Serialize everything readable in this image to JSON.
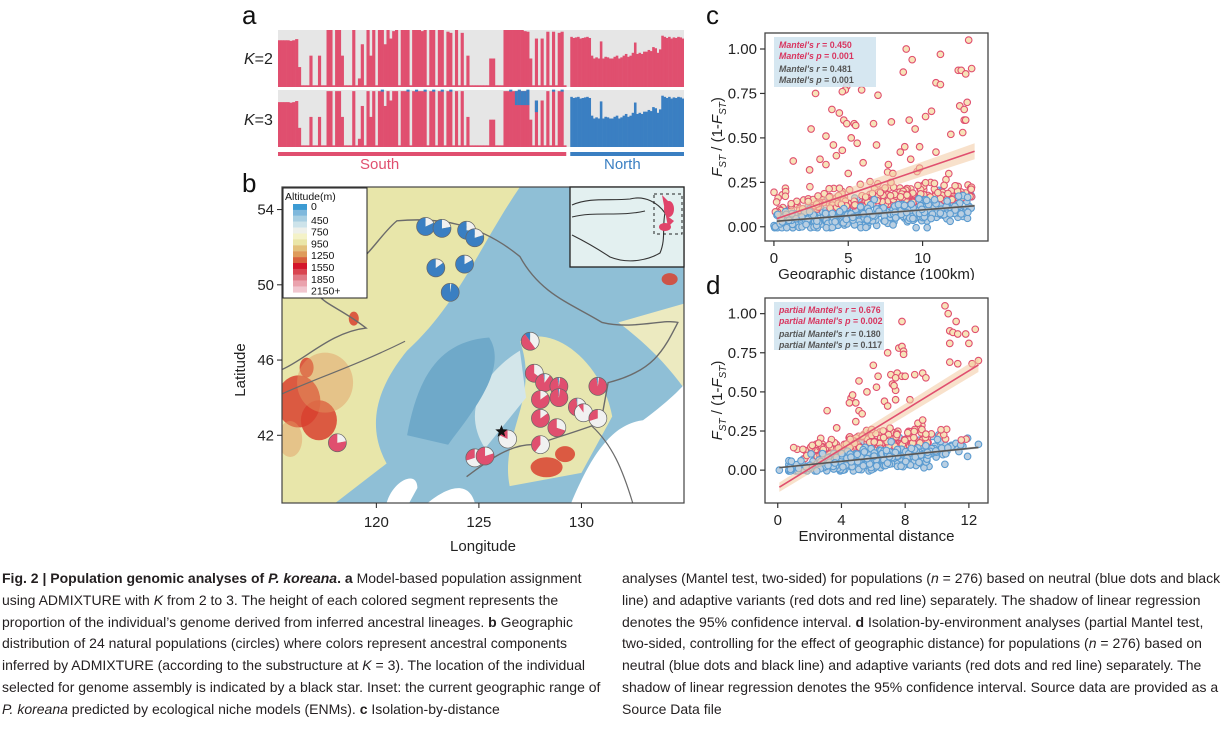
{
  "panels": {
    "a": {
      "letter": "a",
      "rows": [
        {
          "label_var": "K",
          "label_rest": "=2"
        },
        {
          "label_var": "K",
          "label_rest": "=3"
        }
      ],
      "groups": [
        {
          "name": "South",
          "color": "#e04f6f",
          "share": 0.71
        },
        {
          "name": "North",
          "color": "#3a7fc2",
          "share": 0.29
        }
      ],
      "colors": {
        "cluster1": "#e04f6f",
        "cluster2": "#e6e6e6",
        "cluster3": "#3a7fc2"
      },
      "k2_south_profile": [
        0.82,
        0.82,
        0.82,
        0.82,
        0.81,
        0.82,
        0.84,
        0.35,
        0.03,
        0.03,
        0.03,
        0.55,
        0.03,
        0.03,
        0.55,
        0.03,
        0.03,
        1.0,
        1.0,
        0.03,
        1.0,
        1.0,
        0.55,
        0.03,
        0.03,
        0.03,
        1.0,
        0.03,
        0.15,
        0.75,
        0.03,
        1.0,
        0.55,
        1.0,
        0.03,
        1.0,
        1.0,
        0.75,
        1.0,
        0.85,
        0.98,
        1.0,
        0.03,
        1.0,
        1.0,
        1.0,
        0.03,
        1.0,
        1.0,
        1.0,
        0.98,
        1.0,
        0.03,
        1.0,
        1.0,
        0.03,
        1.0,
        1.0,
        0.03,
        0.97,
        0.95,
        0.03,
        1.0,
        0.03,
        0.95,
        0.03,
        0.55,
        0.03,
        0.03,
        0.03,
        0.03,
        0.03,
        0.03,
        0.03,
        0.5,
        0.5,
        0.03,
        0.03,
        0.03,
        1.0,
        1.0,
        1.0,
        1.0,
        1.0,
        1.0,
        1.0,
        0.98,
        0.97,
        0.5,
        0.03,
        0.85,
        0.03,
        0.85,
        0.03,
        0.97,
        0.03,
        0.97,
        0.03,
        0.95,
        0.97,
        0.03
      ],
      "k2_north_profile": [
        0.88,
        0.86,
        0.87,
        0.88,
        0.85,
        0.86,
        0.87,
        0.88,
        0.86,
        0.55,
        0.5,
        0.52,
        0.5,
        0.8,
        0.5,
        0.53,
        0.52,
        0.5,
        0.5,
        0.53,
        0.55,
        0.5,
        0.52,
        0.55,
        0.58,
        0.53,
        0.55,
        0.6,
        0.78,
        0.58,
        0.6,
        0.58,
        0.62,
        0.62,
        0.65,
        0.63,
        0.7,
        0.68,
        0.6,
        0.66,
        0.9,
        0.88,
        0.86,
        0.88,
        0.85,
        0.87,
        0.86,
        0.88,
        0.87,
        0.85
      ]
    },
    "b": {
      "letter": "b",
      "legend_title": "Altitude(m)",
      "legend_items": [
        {
          "label": "0",
          "color": "#3c9bd3"
        },
        {
          "label": "",
          "color": "#7fb8dc"
        },
        {
          "label": "450",
          "color": "#a9cfe2"
        },
        {
          "label": "",
          "color": "#cde3ea"
        },
        {
          "label": "750",
          "color": "#eef0ea"
        },
        {
          "label": "",
          "color": "#f4f2c8"
        },
        {
          "label": "950",
          "color": "#eae6a8"
        },
        {
          "label": "",
          "color": "#e3c17c"
        },
        {
          "label": "1250",
          "color": "#de9b5a"
        },
        {
          "label": "",
          "color": "#d8603c"
        },
        {
          "label": "1550",
          "color": "#d4152a"
        },
        {
          "label": "",
          "color": "#d94450"
        },
        {
          "label": "1850",
          "color": "#e07a86"
        },
        {
          "label": "",
          "color": "#eaa2ad"
        },
        {
          "label": "2150+",
          "color": "#f1c6cf"
        }
      ],
      "x_axis_label": "Longitude",
      "y_axis_label": "Latitude",
      "x_ticks": [
        "120",
        "125",
        "130"
      ],
      "y_ticks": [
        "54",
        "50",
        "46",
        "42"
      ],
      "lon_range": [
        115.4,
        135
      ],
      "lat_range": [
        38.4,
        55.2
      ],
      "populations": [
        {
          "lon": 122.4,
          "lat": 53.1,
          "north": 0.82,
          "south": 0.0,
          "other": 0.18
        },
        {
          "lon": 123.2,
          "lat": 53.0,
          "north": 0.78,
          "south": 0.0,
          "other": 0.22
        },
        {
          "lon": 124.4,
          "lat": 52.9,
          "north": 0.75,
          "south": 0.0,
          "other": 0.25
        },
        {
          "lon": 124.8,
          "lat": 52.5,
          "north": 0.8,
          "south": 0.0,
          "other": 0.2
        },
        {
          "lon": 122.9,
          "lat": 50.9,
          "north": 0.85,
          "south": 0.0,
          "other": 0.15
        },
        {
          "lon": 124.3,
          "lat": 51.1,
          "north": 0.83,
          "south": 0.0,
          "other": 0.17
        },
        {
          "lon": 123.6,
          "lat": 49.6,
          "north": 0.98,
          "south": 0.0,
          "other": 0.02
        },
        {
          "lon": 127.5,
          "lat": 47.0,
          "north": 0.1,
          "south": 0.5,
          "other": 0.4
        },
        {
          "lon": 127.7,
          "lat": 45.3,
          "north": 0.0,
          "south": 0.65,
          "other": 0.35
        },
        {
          "lon": 128.2,
          "lat": 44.8,
          "north": 0.02,
          "south": 0.88,
          "other": 0.1
        },
        {
          "lon": 128.9,
          "lat": 44.6,
          "north": 0.03,
          "south": 0.95,
          "other": 0.02
        },
        {
          "lon": 130.8,
          "lat": 44.6,
          "north": 0.03,
          "south": 0.95,
          "other": 0.02
        },
        {
          "lon": 128.0,
          "lat": 43.9,
          "north": 0.0,
          "south": 0.85,
          "other": 0.15
        },
        {
          "lon": 128.9,
          "lat": 44.0,
          "north": 0.02,
          "south": 0.96,
          "other": 0.02
        },
        {
          "lon": 129.8,
          "lat": 43.5,
          "north": 0.02,
          "south": 0.55,
          "other": 0.43
        },
        {
          "lon": 130.1,
          "lat": 43.2,
          "north": 0.0,
          "south": 0.1,
          "other": 0.9
        },
        {
          "lon": 128.0,
          "lat": 42.9,
          "north": 0.0,
          "south": 0.85,
          "other": 0.15
        },
        {
          "lon": 128.8,
          "lat": 42.4,
          "north": 0.0,
          "south": 0.7,
          "other": 0.3
        },
        {
          "lon": 130.8,
          "lat": 42.9,
          "north": 0.0,
          "south": 0.3,
          "other": 0.7
        },
        {
          "lon": 118.1,
          "lat": 41.6,
          "north": 0.0,
          "south": 0.78,
          "other": 0.22
        },
        {
          "lon": 126.4,
          "lat": 41.8,
          "north": 0.0,
          "south": 0.18,
          "other": 0.82
        },
        {
          "lon": 128.0,
          "lat": 41.5,
          "north": 0.0,
          "south": 0.4,
          "other": 0.6
        },
        {
          "lon": 124.8,
          "lat": 40.8,
          "north": 0.0,
          "south": 0.3,
          "other": 0.7
        },
        {
          "lon": 125.3,
          "lat": 40.9,
          "north": 0.0,
          "south": 0.8,
          "other": 0.2
        }
      ],
      "star": {
        "lon": 126.1,
        "lat": 42.2
      }
    }
  },
  "chart_data": [
    {
      "panel": "c",
      "type": "scatter",
      "xlabel": "Geographic distance (100km)",
      "ylabel_main": "F",
      "ylabel_sub": "ST",
      "ylabel_mid": " / (1-",
      "ylabel_end": ")",
      "x_ticks": [
        0,
        5,
        10
      ],
      "y_ticks": [
        "0.00",
        "0.25",
        "0.50",
        "0.75",
        "1.00"
      ],
      "xlim": [
        -0.6,
        14.4
      ],
      "ylim": [
        -0.08,
        1.09
      ],
      "annotation": [
        {
          "pre": "Mantel's ",
          "var": "r",
          "post": " = 0.450",
          "series": "adaptive"
        },
        {
          "pre": "Mantel's ",
          "var": "p",
          "post": " = 0.001",
          "series": "adaptive"
        },
        {
          "pre": "Mantel's ",
          "var": "r",
          "post": " = 0.481",
          "series": "neutral"
        },
        {
          "pre": "Mantel's ",
          "var": "p",
          "post": " = 0.001",
          "series": "neutral"
        }
      ],
      "series": [
        {
          "name": "adaptive variants",
          "color": "#e04f6f",
          "fill": "#f7e3b8",
          "fit": {
            "intercept": 0.04,
            "slope": 0.0285
          },
          "n_points": 276
        },
        {
          "name": "neutral variants",
          "color": "#5b9bd0",
          "fill": "#b9cfe2",
          "line_color": "#555555",
          "fit": {
            "intercept": 0.03,
            "slope": 0.0065
          },
          "n_points": 276
        }
      ],
      "adaptive_upper_points": [
        [
          8.9,
          1.0
        ],
        [
          13.1,
          1.05
        ],
        [
          9.3,
          0.94
        ],
        [
          11.2,
          0.97
        ],
        [
          12.4,
          0.88
        ],
        [
          12.6,
          0.88
        ],
        [
          13.3,
          0.89
        ],
        [
          12.9,
          0.86
        ],
        [
          8.7,
          0.87
        ],
        [
          4.9,
          0.79
        ],
        [
          4.8,
          0.77
        ],
        [
          4.6,
          0.76
        ],
        [
          2.8,
          0.75
        ],
        [
          5.9,
          0.77
        ],
        [
          7.0,
          0.74
        ],
        [
          10.9,
          0.81
        ],
        [
          11.2,
          0.8
        ],
        [
          10.6,
          0.65
        ],
        [
          13.0,
          0.7
        ],
        [
          12.5,
          0.68
        ],
        [
          12.8,
          0.66
        ],
        [
          12.8,
          0.6
        ],
        [
          12.9,
          0.6
        ],
        [
          4.4,
          0.64
        ],
        [
          3.9,
          0.66
        ],
        [
          4.7,
          0.6
        ],
        [
          4.9,
          0.58
        ],
        [
          5.4,
          0.58
        ],
        [
          5.5,
          0.57
        ],
        [
          6.7,
          0.58
        ],
        [
          7.9,
          0.59
        ],
        [
          2.5,
          0.55
        ],
        [
          9.1,
          0.6
        ],
        [
          10.2,
          0.62
        ],
        [
          9.5,
          0.55
        ],
        [
          11.9,
          0.52
        ],
        [
          12.7,
          0.53
        ],
        [
          3.5,
          0.51
        ],
        [
          4.0,
          0.46
        ],
        [
          4.2,
          0.4
        ],
        [
          4.6,
          0.43
        ],
        [
          5.2,
          0.5
        ],
        [
          5.6,
          0.47
        ],
        [
          6.9,
          0.46
        ],
        [
          8.5,
          0.42
        ],
        [
          8.8,
          0.45
        ],
        [
          9.8,
          0.45
        ],
        [
          10.9,
          0.42
        ],
        [
          3.1,
          0.38
        ],
        [
          3.5,
          0.35
        ],
        [
          1.3,
          0.37
        ],
        [
          2.4,
          0.32
        ],
        [
          5.0,
          0.3
        ],
        [
          6.0,
          0.36
        ],
        [
          7.7,
          0.35
        ],
        [
          8.0,
          0.3
        ],
        [
          9.2,
          0.38
        ],
        [
          9.8,
          0.33
        ]
      ],
      "neutral_low_points": [
        [
          0.1,
          0.0
        ]
      ]
    },
    {
      "panel": "d",
      "type": "scatter",
      "xlabel": "Environmental distance",
      "ylabel_main": "F",
      "ylabel_sub": "ST",
      "ylabel_mid": " / (1-",
      "ylabel_end": ")",
      "x_ticks": [
        0,
        4,
        8,
        12
      ],
      "y_ticks": [
        "0.00",
        "0.25",
        "0.50",
        "0.75",
        "1.00"
      ],
      "xlim": [
        -0.8,
        13.2
      ],
      "ylim": [
        -0.21,
        1.1
      ],
      "annotation": [
        {
          "pre": "partial Mantel's ",
          "var": "r",
          "post": " = 0.676",
          "series": "adaptive"
        },
        {
          "pre": "partial Mantel's ",
          "var": "p",
          "post": " = 0.002",
          "series": "adaptive"
        },
        {
          "pre": "partial Mantel's ",
          "var": "r",
          "post": " = 0.180",
          "series": "neutral"
        },
        {
          "pre": "partial Mantel's ",
          "var": "p",
          "post": " = 0.117",
          "series": "neutral"
        }
      ],
      "series": [
        {
          "name": "adaptive variants",
          "color": "#e04f6f",
          "fill": "#f7e3b8",
          "fit": {
            "intercept": -0.115,
            "slope": 0.0625
          },
          "n_points": 276
        },
        {
          "name": "neutral variants",
          "color": "#5b9bd0",
          "fill": "#b9cfe2",
          "line_color": "#555555",
          "fit": {
            "intercept": 0.015,
            "slope": 0.0103
          },
          "n_points": 276
        }
      ],
      "adaptive_upper_points": [
        [
          10.5,
          1.05
        ],
        [
          10.7,
          1.0
        ],
        [
          11.2,
          0.95
        ],
        [
          10.8,
          0.89
        ],
        [
          11.0,
          0.88
        ],
        [
          11.3,
          0.87
        ],
        [
          11.8,
          0.87
        ],
        [
          12.4,
          0.9
        ],
        [
          12.0,
          0.81
        ],
        [
          10.8,
          0.81
        ],
        [
          7.8,
          0.95
        ],
        [
          7.6,
          0.78
        ],
        [
          7.8,
          0.79
        ],
        [
          7.9,
          0.76
        ],
        [
          7.9,
          0.74
        ],
        [
          6.9,
          0.75
        ],
        [
          10.8,
          0.69
        ],
        [
          11.3,
          0.68
        ],
        [
          12.2,
          0.68
        ],
        [
          12.6,
          0.7
        ],
        [
          6.0,
          0.67
        ],
        [
          5.1,
          0.57
        ],
        [
          6.3,
          0.6
        ],
        [
          7.1,
          0.61
        ],
        [
          7.5,
          0.62
        ],
        [
          7.4,
          0.59
        ],
        [
          7.8,
          0.6
        ],
        [
          8.0,
          0.6
        ],
        [
          8.6,
          0.61
        ],
        [
          9.1,
          0.62
        ],
        [
          9.3,
          0.59
        ],
        [
          7.2,
          0.55
        ],
        [
          7.4,
          0.51
        ],
        [
          7.3,
          0.54
        ],
        [
          6.2,
          0.53
        ],
        [
          5.6,
          0.5
        ],
        [
          4.6,
          0.46
        ],
        [
          4.7,
          0.48
        ],
        [
          4.5,
          0.43
        ],
        [
          4.9,
          0.43
        ],
        [
          3.1,
          0.38
        ],
        [
          6.7,
          0.44
        ],
        [
          7.4,
          0.45
        ],
        [
          8.3,
          0.45
        ],
        [
          5.1,
          0.38
        ],
        [
          5.3,
          0.36
        ],
        [
          6.9,
          0.41
        ],
        [
          8.8,
          0.3
        ],
        [
          9.1,
          0.32
        ],
        [
          9.3,
          0.23
        ],
        [
          3.7,
          0.27
        ],
        [
          4.9,
          0.31
        ],
        [
          5.9,
          0.26
        ]
      ],
      "neutral_low_points": [
        [
          0.1,
          0.0
        ]
      ]
    }
  ],
  "caption": {
    "left": [
      {
        "t": "b",
        "s": "Fig. 2 | Population genomic analyses of "
      },
      {
        "t": "bi",
        "s": "P. koreana"
      },
      {
        "t": "b",
        "s": ". a "
      },
      {
        "t": "n",
        "s": "Model-based population assignment using ADMIXTURE with "
      },
      {
        "t": "i",
        "s": "K"
      },
      {
        "t": "n",
        "s": " from 2 to 3. The height of each colored segment represents the proportion of the individual’s genome derived from inferred ancestral lineages. "
      },
      {
        "t": "b",
        "s": "b "
      },
      {
        "t": "n",
        "s": "Geographic distribution of 24 natural populations (circles) where colors represent ancestral components inferred by ADMIXTURE (according to the substructure at "
      },
      {
        "t": "i",
        "s": "K"
      },
      {
        "t": "n",
        "s": " = 3). The location of the individual selected for genome assembly is indicated by a black star. Inset: the current geographic range of "
      },
      {
        "t": "i",
        "s": "P. koreana"
      },
      {
        "t": "n",
        "s": " predicted by ecological niche models (ENMs). "
      },
      {
        "t": "b",
        "s": "c "
      },
      {
        "t": "n",
        "s": "Isolation-by-distance"
      }
    ],
    "right": [
      {
        "t": "n",
        "s": "analyses (Mantel test, two-sided) for populations ("
      },
      {
        "t": "i",
        "s": "n"
      },
      {
        "t": "n",
        "s": " = 276) based on neutral (blue dots and black line) and adaptive variants (red dots and red line) separately. The shadow of linear regression denotes the 95% confidence interval. "
      },
      {
        "t": "b",
        "s": "d "
      },
      {
        "t": "n",
        "s": "Isolation-by-environment analyses (partial Mantel test, two-sided, controlling for the effect of geographic distance) for populations ("
      },
      {
        "t": "i",
        "s": "n"
      },
      {
        "t": "n",
        "s": " = 276) based on neutral (blue dots and black line) and adaptive variants (red dots and red line) separately. The shadow of linear regression denotes the 95% confidence interval. Source data are provided as a Source Data file"
      }
    ]
  }
}
